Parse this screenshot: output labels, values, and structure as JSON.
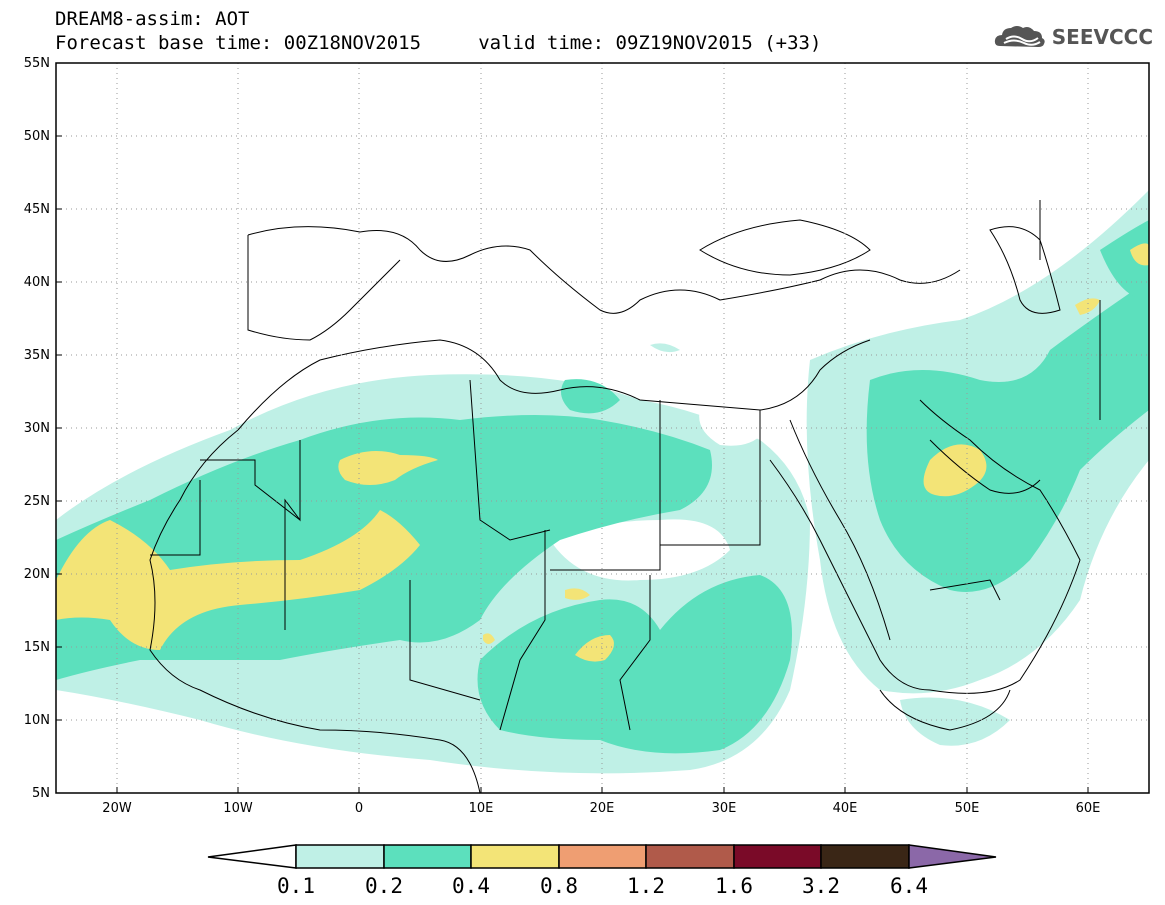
{
  "header": {
    "line1": "DREAM8-assim: AOT",
    "line2": "Forecast base time: 00Z18NOV2015     valid time: 09Z19NOV2015 (+33)"
  },
  "logo": {
    "text": "SEEVCCC",
    "icon": "cloud-icon"
  },
  "map": {
    "lon_range": [
      -25,
      65
    ],
    "lat_range": [
      5,
      55
    ],
    "lat_ticks": [
      "5N",
      "10N",
      "15N",
      "20N",
      "25N",
      "30N",
      "35N",
      "40N",
      "45N",
      "50N",
      "55N"
    ],
    "lon_ticks": [
      "20W",
      "10W",
      "0",
      "10E",
      "20E",
      "30E",
      "40E",
      "50E",
      "60E"
    ],
    "grid": "dotted"
  },
  "colorbar": {
    "labels": [
      "0.1",
      "0.2",
      "0.4",
      "0.8",
      "1.2",
      "1.6",
      "3.2",
      "6.4"
    ],
    "colors": [
      "#ffffff",
      "#bff0e6",
      "#5ce0bd",
      "#f3e477",
      "#ef9e72",
      "#b05a4a",
      "#7a0a28",
      "#3a2616",
      "#8b68a8"
    ]
  }
}
